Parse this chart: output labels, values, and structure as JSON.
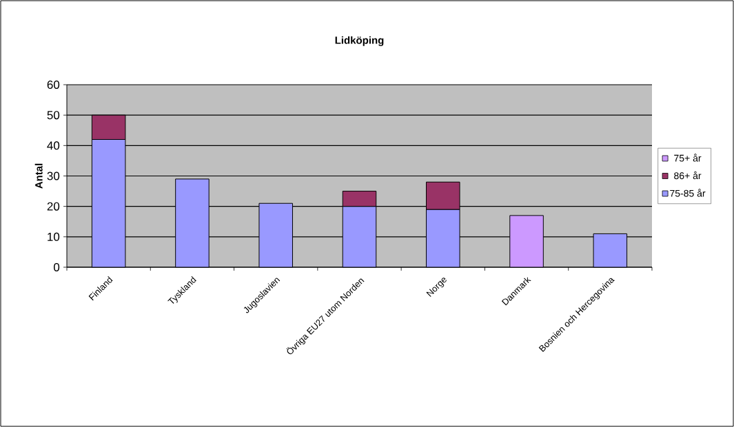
{
  "chart_data": {
    "type": "bar",
    "title": "Lidköping",
    "ylabel": "Antal",
    "stacked": true,
    "categories": [
      "Finland",
      "Tyskland",
      "Jugoslavien",
      "Övriga EU27 utom Norden",
      "Norge",
      "Danmark",
      "Bosnien och Hercegovina"
    ],
    "series": [
      {
        "name": "75-85 år",
        "color": "#9999ff",
        "values": [
          42,
          29,
          21,
          20,
          19,
          null,
          11
        ]
      },
      {
        "name": "86+ år",
        "color": "#993366",
        "values": [
          8,
          null,
          null,
          5,
          9,
          null,
          null
        ]
      },
      {
        "name": "75+ år",
        "color": "#cc99ff",
        "values": [
          null,
          null,
          null,
          null,
          null,
          17,
          null
        ]
      }
    ],
    "ylim": [
      0,
      60
    ],
    "yticks": [
      0,
      10,
      20,
      30,
      40,
      50,
      60
    ],
    "grid": "y",
    "legend": "right"
  }
}
